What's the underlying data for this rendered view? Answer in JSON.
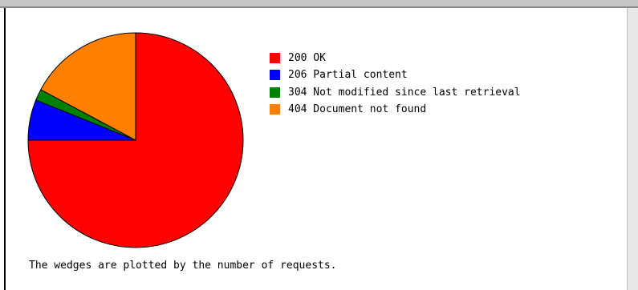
{
  "chart_data": {
    "type": "pie",
    "title": "",
    "slices": [
      {
        "label": "200 OK",
        "value": 75.0,
        "color": "#ff0000"
      },
      {
        "label": "206 Partial content",
        "value": 6.1,
        "color": "#0000ff"
      },
      {
        "label": "304 Not modified since last retrieval",
        "value": 1.7,
        "color": "#008000"
      },
      {
        "label": "404 Document not found",
        "value": 17.2,
        "color": "#ff8000"
      }
    ],
    "legend_position": "right"
  },
  "footnote": "The wedges are plotted by the number of requests."
}
